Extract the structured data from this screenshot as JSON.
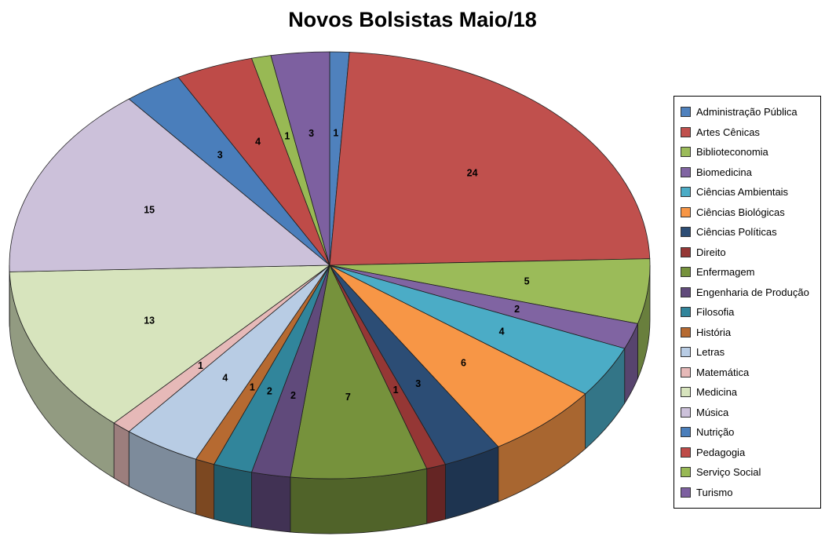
{
  "chart_data": {
    "type": "pie",
    "effect": "3d",
    "title": "Novos Bolsistas Maio/18",
    "legend_position": "right",
    "data_labels": "value",
    "start_angle_deg": 0,
    "direction": "clockwise",
    "total": 102,
    "categories": [
      "Administração Pública",
      "Artes Cênicas",
      "Biblioteconomia",
      "Biomedicina",
      "Ciências Ambientais",
      "Ciências Biológicas",
      "Ciências Políticas",
      "Direito",
      "Enfermagem",
      "Engenharia de Produção",
      "Filosofia",
      "História",
      "Letras",
      "Matemática",
      "Medicina",
      "Música",
      "Nutrição",
      "Pedagogia",
      "Serviço Social",
      "Turismo"
    ],
    "values": [
      1,
      24,
      5,
      2,
      4,
      6,
      3,
      1,
      7,
      2,
      2,
      1,
      4,
      1,
      13,
      15,
      3,
      4,
      1,
      3
    ],
    "colors": [
      "#4F81BD",
      "#C0504D",
      "#9BBB59",
      "#8064A2",
      "#4BACC6",
      "#F79646",
      "#2C4D75",
      "#953735",
      "#76923C",
      "#604A7B",
      "#31859B",
      "#B66A31",
      "#B8CCE4",
      "#E6B9B8",
      "#D7E4BD",
      "#CCC1DA",
      "#4A7EBB",
      "#BE4B48",
      "#98B954",
      "#7D60A0"
    ],
    "outline_color": "#1f1f1f",
    "background_color": "#FFFFFF"
  }
}
